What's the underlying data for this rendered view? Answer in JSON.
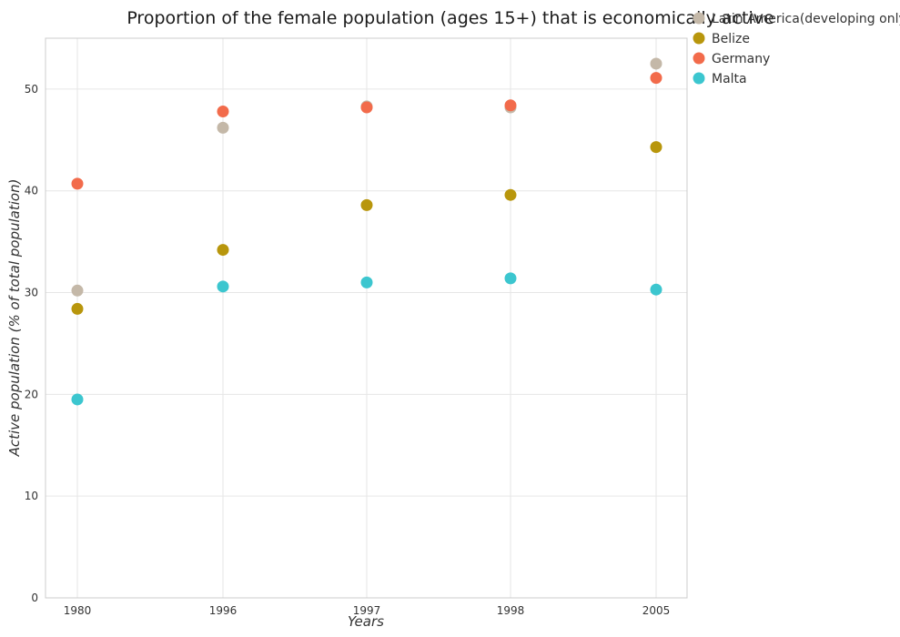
{
  "chart_data": {
    "type": "scatter",
    "title": "Proportion of the female population (ages 15+) that is economically active",
    "xlabel": "Years",
    "ylabel": "Active population (% of total population)",
    "categories": [
      "1980",
      "1996",
      "1997",
      "1998",
      "2005"
    ],
    "ylim": [
      0,
      55
    ],
    "yticks": [
      0,
      10,
      20,
      30,
      40,
      50
    ],
    "grid": true,
    "legend_position": "top-right",
    "series": [
      {
        "name": "Latin America(developing only)",
        "color": "#c4b8a8",
        "values": [
          30.2,
          46.2,
          48.3,
          48.2,
          52.5
        ]
      },
      {
        "name": "Belize",
        "color": "#b8960c",
        "values": [
          28.4,
          34.2,
          38.6,
          39.6,
          44.3
        ]
      },
      {
        "name": "Germany",
        "color": "#f26b4b",
        "values": [
          40.7,
          47.8,
          48.2,
          48.4,
          51.1
        ]
      },
      {
        "name": "Malta",
        "color": "#3cc6cf",
        "values": [
          19.5,
          30.6,
          31.0,
          31.4,
          30.3
        ]
      }
    ]
  }
}
